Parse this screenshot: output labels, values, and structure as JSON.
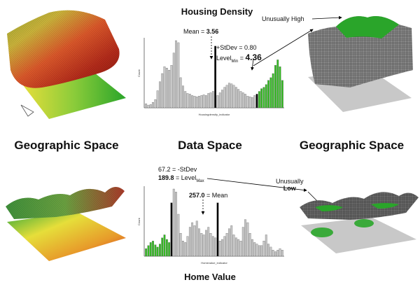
{
  "top": {
    "title": "Housing Density",
    "annotations": {
      "mean_prefix": "Mean = ",
      "mean_value": "3.56",
      "stdev": "+StDev = 0.80",
      "level_prefix": "Level",
      "level_sub": "Min",
      "level_eq": " = ",
      "level_value": "4.36",
      "unusually_high": "Unusually High"
    },
    "chart_data": {
      "type": "bar",
      "title": "Housing Density",
      "xlabel": "Housingdensity_indicator",
      "ylabel": "Count",
      "values": [
        6,
        4,
        5,
        8,
        12,
        25,
        38,
        50,
        60,
        58,
        55,
        62,
        80,
        98,
        95,
        44,
        32,
        24,
        21,
        20,
        18,
        17,
        16,
        17,
        18,
        19,
        18,
        21,
        22,
        24,
        90,
        18,
        22,
        26,
        30,
        33,
        36,
        35,
        33,
        30,
        27,
        24,
        22,
        20,
        17,
        16,
        15,
        18,
        20,
        24,
        28,
        30,
        34,
        40,
        44,
        50,
        62,
        70,
        60,
        40
      ],
      "highlight": {
        "black": [
          30,
          48
        ],
        "green_from": 48
      }
    }
  },
  "bottom": {
    "title": "Home Value",
    "annotations": {
      "stdev_line": "67.2 = -StDev",
      "level_value": "189.8",
      "level_mid": " = Level",
      "level_sub": "Max",
      "mean_value": "257.0",
      "mean_suffix": " = Mean",
      "unusually": "Unusually",
      "low": "Low"
    },
    "chart_data": {
      "type": "bar",
      "title": "Home Value",
      "xlabel": "Homevalue_indicator",
      "ylabel": "Count",
      "values": [
        10,
        14,
        18,
        20,
        15,
        12,
        16,
        24,
        28,
        22,
        18,
        70,
        88,
        84,
        55,
        30,
        20,
        18,
        26,
        38,
        44,
        40,
        46,
        36,
        30,
        28,
        34,
        38,
        30,
        26,
        24,
        70,
        20,
        22,
        26,
        30,
        36,
        40,
        28,
        24,
        22,
        20,
        38,
        48,
        44,
        30,
        22,
        18,
        16,
        14,
        14,
        20,
        28,
        16,
        12,
        8,
        6,
        8,
        10,
        8
      ],
      "highlight": {
        "green_until": 11,
        "black": [
          11,
          31
        ]
      }
    }
  },
  "labels": {
    "geo_left": "Geographic Space",
    "data_space": "Data Space",
    "geo_right": "Geographic Space"
  },
  "colors": {
    "green": "#33bb22",
    "gray_bar": "#c8c8c8",
    "black": "#000000",
    "map_red": "#d62a1a",
    "map_yellow": "#e8e03a",
    "mesh_gray": "#7a7a7a"
  }
}
